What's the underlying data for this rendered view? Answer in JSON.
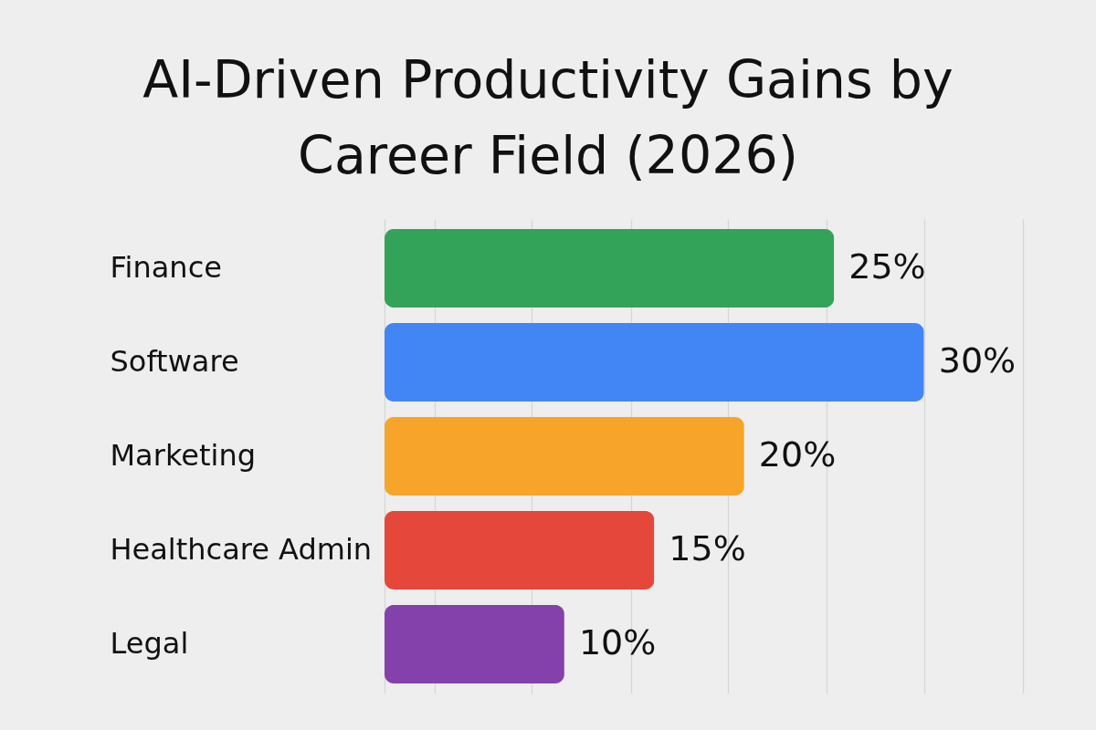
{
  "chart_data": {
    "type": "bar",
    "orientation": "horizontal",
    "title": "AI-Driven Productivity Gains by Career Field (2026)",
    "categories": [
      "Finance",
      "Software",
      "Marketing",
      "Healthcare Admin",
      "Legal"
    ],
    "values": [
      25,
      30,
      20,
      15,
      10
    ],
    "colors": [
      "#34a35a",
      "#4285f4",
      "#f7a42a",
      "#e5483a",
      "#8541ab"
    ],
    "value_labels": [
      "25%",
      "30%",
      "20%",
      "15%",
      "10%"
    ],
    "xlim": [
      0,
      35.5
    ],
    "xticks": [
      {
        "value": 0,
        "label": null
      },
      {
        "value": 2.8,
        "label": null
      },
      {
        "value": 8.2,
        "label": null
      },
      {
        "value": 13.7,
        "label": null
      },
      {
        "value": 19.1,
        "label": null
      },
      {
        "value": 24.6,
        "label": null
      },
      {
        "value": 30,
        "label": null
      },
      {
        "value": 35.5,
        "label": null
      }
    ],
    "grid": "x",
    "tick_labels": "y"
  }
}
